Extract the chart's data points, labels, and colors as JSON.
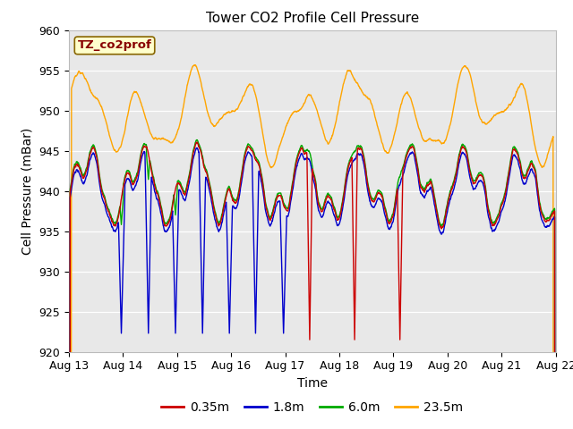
{
  "title": "Tower CO2 Profile Cell Pressure",
  "xlabel": "Time",
  "ylabel": "Cell Pressure (mBar)",
  "ylim": [
    920,
    960
  ],
  "xlim_days": [
    0,
    9
  ],
  "xtick_labels": [
    "Aug 13",
    "Aug 14",
    "Aug 15",
    "Aug 16",
    "Aug 17",
    "Aug 18",
    "Aug 19",
    "Aug 20",
    "Aug 21",
    "Aug 22"
  ],
  "series_labels": [
    "0.35m",
    "1.8m",
    "6.0m",
    "23.5m"
  ],
  "colors": [
    "#cc0000",
    "#0000cc",
    "#00aa00",
    "#ffa500"
  ],
  "legend_label": "TZ_co2prof",
  "background_color": "#e8e8e8",
  "title_fontsize": 11,
  "axis_fontsize": 10,
  "tick_fontsize": 9,
  "legend_fontsize": 10,
  "grid_color": "#ffffff",
  "annot_facecolor": "#ffffcc",
  "annot_edgecolor": "#886600",
  "annot_textcolor": "#880000"
}
